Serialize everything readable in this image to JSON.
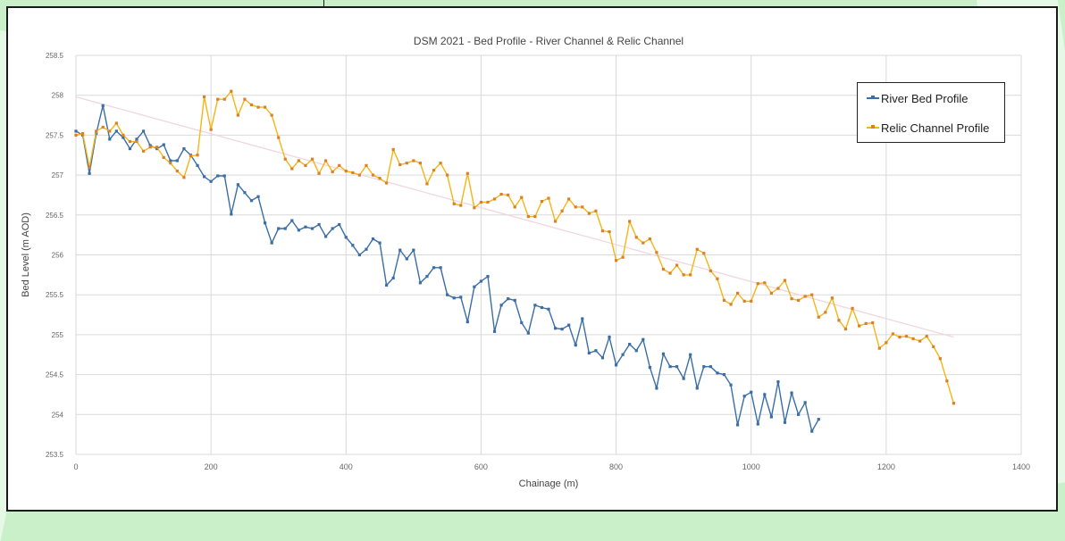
{
  "colors": {
    "river": "#3a6ea5",
    "relic": "#f5b514",
    "relic_marker": "#d9802a",
    "trend": "#f0d6df",
    "grid": "#d9d9d9",
    "page_bg": "#c9f0c9"
  },
  "chart_data": {
    "type": "line",
    "title": "DSM 2021 - Bed Profile - River Channel & Relic Channel",
    "xlabel": "Chainage (m)",
    "ylabel": "Bed Level (m AOD)",
    "xlim": [
      0,
      1400
    ],
    "ylim": [
      253.5,
      258.5
    ],
    "xticks": [
      "0",
      "200",
      "400",
      "600",
      "800",
      "1000",
      "1200",
      "1400"
    ],
    "yticks": [
      "258.5",
      "258",
      "257.5",
      "257",
      "256.5",
      "256",
      "255.5",
      "255",
      "254.5",
      "254",
      "253.5"
    ],
    "grid": true,
    "legend_position": "top-right",
    "series": [
      {
        "name": "River Bed Profile",
        "x": [
          0,
          10,
          20,
          30,
          40,
          50,
          60,
          70,
          80,
          90,
          100,
          110,
          120,
          130,
          140,
          150,
          160,
          170,
          180,
          190,
          200,
          210,
          220,
          230,
          240,
          250,
          260,
          270,
          280,
          290,
          300,
          310,
          320,
          330,
          340,
          350,
          360,
          370,
          380,
          390,
          400,
          410,
          420,
          430,
          440,
          450,
          460,
          470,
          480,
          490,
          500,
          510,
          520,
          530,
          540,
          550,
          560,
          570,
          580,
          590,
          600,
          610,
          620,
          630,
          640,
          650,
          660,
          670,
          680,
          690,
          700,
          710,
          720,
          730,
          740,
          750,
          760,
          770,
          780,
          790,
          800,
          810,
          820,
          830,
          840,
          850,
          860,
          870,
          880,
          890,
          900,
          910,
          920,
          930,
          940,
          950,
          960,
          970,
          980,
          990,
          1000,
          1010,
          1020,
          1030,
          1040,
          1050,
          1060,
          1070,
          1080,
          1090,
          1100
        ],
        "values": [
          257.55,
          257.5,
          257.02,
          257.52,
          257.87,
          257.45,
          257.55,
          257.47,
          257.33,
          257.45,
          257.55,
          257.37,
          257.33,
          257.38,
          257.18,
          257.18,
          257.33,
          257.25,
          257.12,
          256.98,
          256.92,
          256.99,
          256.99,
          256.51,
          256.88,
          256.78,
          256.68,
          256.73,
          256.4,
          256.15,
          256.33,
          256.33,
          256.43,
          256.31,
          256.35,
          256.33,
          256.38,
          256.23,
          256.33,
          256.38,
          256.22,
          256.12,
          256.0,
          256.07,
          256.2,
          256.15,
          255.62,
          255.71,
          256.06,
          255.95,
          256.06,
          255.65,
          255.73,
          255.84,
          255.84,
          255.5,
          255.46,
          255.47,
          255.16,
          255.6,
          255.67,
          255.73,
          255.04,
          255.37,
          255.45,
          255.43,
          255.15,
          255.02,
          255.37,
          255.34,
          255.32,
          255.08,
          255.07,
          255.12,
          254.87,
          255.2,
          254.77,
          254.8,
          254.71,
          254.97,
          254.62,
          254.75,
          254.88,
          254.8,
          254.94,
          254.59,
          254.33,
          254.76,
          254.6,
          254.6,
          254.45,
          254.75,
          254.33,
          254.6,
          254.6,
          254.52,
          254.5,
          254.37,
          253.87,
          254.23,
          254.28,
          253.88,
          254.25,
          253.97,
          254.41,
          253.9,
          254.27,
          254.0,
          254.15,
          253.79,
          253.94
        ]
      },
      {
        "name": "Relic Channel Profile",
        "x": [
          0,
          10,
          20,
          30,
          40,
          50,
          60,
          70,
          80,
          90,
          100,
          110,
          120,
          130,
          140,
          150,
          160,
          170,
          180,
          190,
          200,
          210,
          220,
          230,
          240,
          250,
          260,
          270,
          280,
          290,
          300,
          310,
          320,
          330,
          340,
          350,
          360,
          370,
          380,
          390,
          400,
          410,
          420,
          430,
          440,
          450,
          460,
          470,
          480,
          490,
          500,
          510,
          520,
          530,
          540,
          550,
          560,
          570,
          580,
          590,
          600,
          610,
          620,
          630,
          640,
          650,
          660,
          670,
          680,
          690,
          700,
          710,
          720,
          730,
          740,
          750,
          760,
          770,
          780,
          790,
          800,
          810,
          820,
          830,
          840,
          850,
          860,
          870,
          880,
          890,
          900,
          910,
          920,
          930,
          940,
          950,
          960,
          970,
          980,
          990,
          1000,
          1010,
          1020,
          1030,
          1040,
          1050,
          1060,
          1070,
          1080,
          1090,
          1100,
          1110,
          1120,
          1130,
          1140,
          1150,
          1160,
          1170,
          1180,
          1190,
          1200,
          1210,
          1220,
          1230,
          1240,
          1250,
          1260,
          1270,
          1280,
          1290,
          1300
        ],
        "values": [
          257.5,
          257.52,
          257.1,
          257.55,
          257.6,
          257.55,
          257.65,
          257.5,
          257.42,
          257.42,
          257.3,
          257.35,
          257.35,
          257.22,
          257.15,
          257.05,
          256.97,
          257.24,
          257.25,
          257.98,
          257.57,
          257.95,
          257.95,
          258.05,
          257.75,
          257.95,
          257.88,
          257.85,
          257.85,
          257.75,
          257.47,
          257.2,
          257.08,
          257.18,
          257.12,
          257.2,
          257.02,
          257.18,
          257.04,
          257.12,
          257.05,
          257.03,
          257.0,
          257.12,
          257.0,
          256.96,
          256.9,
          257.32,
          257.13,
          257.15,
          257.18,
          257.15,
          256.89,
          257.06,
          257.15,
          257.0,
          256.64,
          256.62,
          257.02,
          256.59,
          256.66,
          256.66,
          256.7,
          256.76,
          256.75,
          256.6,
          256.72,
          256.48,
          256.48,
          256.67,
          256.71,
          256.42,
          256.55,
          256.7,
          256.6,
          256.6,
          256.52,
          256.55,
          256.3,
          256.29,
          255.93,
          255.97,
          256.42,
          256.22,
          256.15,
          256.2,
          256.03,
          255.82,
          255.77,
          255.87,
          255.75,
          255.75,
          256.07,
          256.02,
          255.8,
          255.7,
          255.43,
          255.38,
          255.52,
          255.42,
          255.42,
          255.64,
          255.65,
          255.52,
          255.58,
          255.68,
          255.45,
          255.43,
          255.48,
          255.5,
          255.22,
          255.28,
          255.46,
          255.18,
          255.07,
          255.33,
          255.11,
          255.14,
          255.15,
          254.83,
          254.9,
          255.01,
          254.97,
          254.98,
          254.95,
          254.92,
          254.98,
          254.85,
          254.7,
          254.42,
          254.14
        ]
      }
    ],
    "trendline": {
      "x": [
        0,
        1300
      ],
      "y": [
        257.98,
        254.97
      ]
    }
  }
}
